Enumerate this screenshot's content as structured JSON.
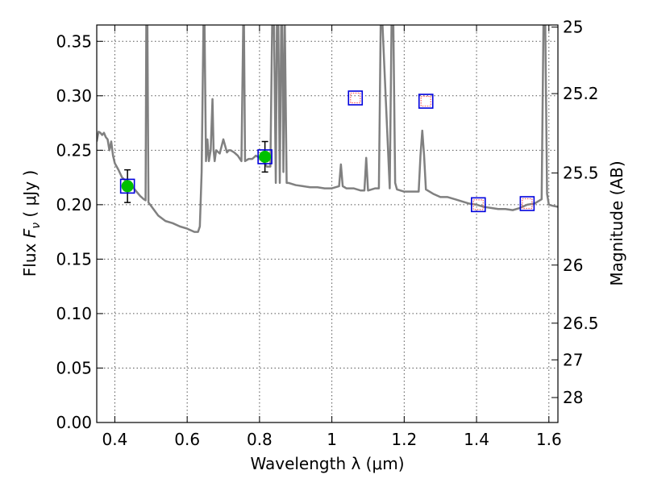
{
  "chart_data": {
    "type": "line",
    "xlabel": "Wavelength  λ (μm)",
    "ylabel_prefix": "Flux  ",
    "ylabel_var": "F",
    "ylabel_sub": "ν",
    "ylabel_suffix": "  ( μJy )",
    "y2label": "Magnitude (AB)",
    "xlim": [
      0.35,
      1.625
    ],
    "ylim": [
      0.0,
      0.365
    ],
    "xticks": [
      0.4,
      0.6,
      0.8,
      1.0,
      1.2,
      1.4,
      1.6
    ],
    "xtick_labels": [
      "0.4",
      "0.6",
      "0.8",
      "1",
      "1.2",
      "1.4",
      "1.6"
    ],
    "yticks": [
      0.0,
      0.05,
      0.1,
      0.15,
      0.2,
      0.25,
      0.3,
      0.35
    ],
    "ytick_labels": [
      "0.00",
      "0.05",
      "0.10",
      "0.15",
      "0.20",
      "0.25",
      "0.30",
      "0.35"
    ],
    "y2ticks": [
      25,
      25.2,
      25.5,
      26,
      26.5,
      27,
      28
    ],
    "y2tick_labels": [
      "25",
      "25.2",
      "25.5",
      "26",
      "26.5",
      "27",
      "28"
    ],
    "grid": true,
    "colors": {
      "model": "#808080",
      "detection": "#00c000",
      "model_box": "#0000dd",
      "upper_limit_box": "#ff6060"
    },
    "series": [
      {
        "kind": "model_spectrum",
        "x": [
          0.35,
          0.355,
          0.36,
          0.365,
          0.37,
          0.375,
          0.38,
          0.385,
          0.39,
          0.395,
          0.4,
          0.41,
          0.42,
          0.43,
          0.44,
          0.45,
          0.46,
          0.47,
          0.48,
          0.485,
          0.487,
          0.49,
          0.493,
          0.5,
          0.52,
          0.54,
          0.56,
          0.58,
          0.6,
          0.62,
          0.63,
          0.635,
          0.64,
          0.645,
          0.648,
          0.652,
          0.656,
          0.66,
          0.665,
          0.67,
          0.673,
          0.676,
          0.68,
          0.69,
          0.7,
          0.71,
          0.715,
          0.72,
          0.73,
          0.74,
          0.75,
          0.755,
          0.757,
          0.76,
          0.77,
          0.78,
          0.79,
          0.8,
          0.81,
          0.82,
          0.83,
          0.835,
          0.84,
          0.845,
          0.848,
          0.852,
          0.856,
          0.86,
          0.863,
          0.866,
          0.87,
          0.875,
          0.88,
          0.9,
          0.92,
          0.94,
          0.96,
          0.98,
          1.0,
          1.02,
          1.025,
          1.03,
          1.035,
          1.04,
          1.06,
          1.08,
          1.09,
          1.095,
          1.1,
          1.12,
          1.13,
          1.135,
          1.14,
          1.16,
          1.165,
          1.17,
          1.175,
          1.18,
          1.2,
          1.22,
          1.24,
          1.245,
          1.25,
          1.255,
          1.26,
          1.28,
          1.3,
          1.32,
          1.34,
          1.36,
          1.38,
          1.4,
          1.42,
          1.44,
          1.46,
          1.48,
          1.5,
          1.52,
          1.54,
          1.56,
          1.58,
          1.585,
          1.59,
          1.595,
          1.6,
          1.61,
          1.625
        ],
        "y": [
          0.258,
          0.267,
          0.266,
          0.264,
          0.266,
          0.262,
          0.26,
          0.25,
          0.258,
          0.245,
          0.238,
          0.232,
          0.225,
          0.222,
          0.22,
          0.216,
          0.212,
          0.208,
          0.205,
          0.204,
          0.365,
          0.365,
          0.202,
          0.199,
          0.19,
          0.185,
          0.183,
          0.18,
          0.178,
          0.175,
          0.175,
          0.18,
          0.23,
          0.365,
          0.365,
          0.24,
          0.26,
          0.24,
          0.25,
          0.297,
          0.25,
          0.24,
          0.25,
          0.247,
          0.26,
          0.248,
          0.25,
          0.25,
          0.248,
          0.245,
          0.24,
          0.365,
          0.365,
          0.24,
          0.242,
          0.242,
          0.245,
          0.243,
          0.24,
          0.235,
          0.235,
          0.365,
          0.365,
          0.22,
          0.365,
          0.365,
          0.22,
          0.365,
          0.365,
          0.23,
          0.365,
          0.22,
          0.22,
          0.218,
          0.217,
          0.216,
          0.216,
          0.215,
          0.215,
          0.217,
          0.237,
          0.217,
          0.216,
          0.215,
          0.215,
          0.213,
          0.213,
          0.243,
          0.213,
          0.215,
          0.215,
          0.365,
          0.365,
          0.215,
          0.365,
          0.365,
          0.22,
          0.214,
          0.212,
          0.212,
          0.212,
          0.245,
          0.268,
          0.245,
          0.214,
          0.21,
          0.207,
          0.207,
          0.205,
          0.203,
          0.201,
          0.2,
          0.198,
          0.197,
          0.196,
          0.196,
          0.195,
          0.197,
          0.2,
          0.201,
          0.205,
          0.365,
          0.365,
          0.21,
          0.2,
          0.199,
          0.198
        ]
      },
      {
        "kind": "model_photometry",
        "x": [
          0.435,
          0.815,
          1.065,
          1.26,
          1.405,
          1.54
        ],
        "y": [
          0.217,
          0.244,
          0.298,
          0.295,
          0.2,
          0.201
        ]
      },
      {
        "kind": "upper_limit",
        "x": [
          1.065,
          1.26,
          1.405,
          1.54
        ],
        "y": [
          0.298,
          0.295,
          0.2,
          0.201
        ]
      },
      {
        "kind": "detection",
        "x": [
          0.435,
          0.815
        ],
        "y": [
          0.217,
          0.244
        ],
        "yerr": [
          0.015,
          0.014
        ]
      }
    ]
  }
}
